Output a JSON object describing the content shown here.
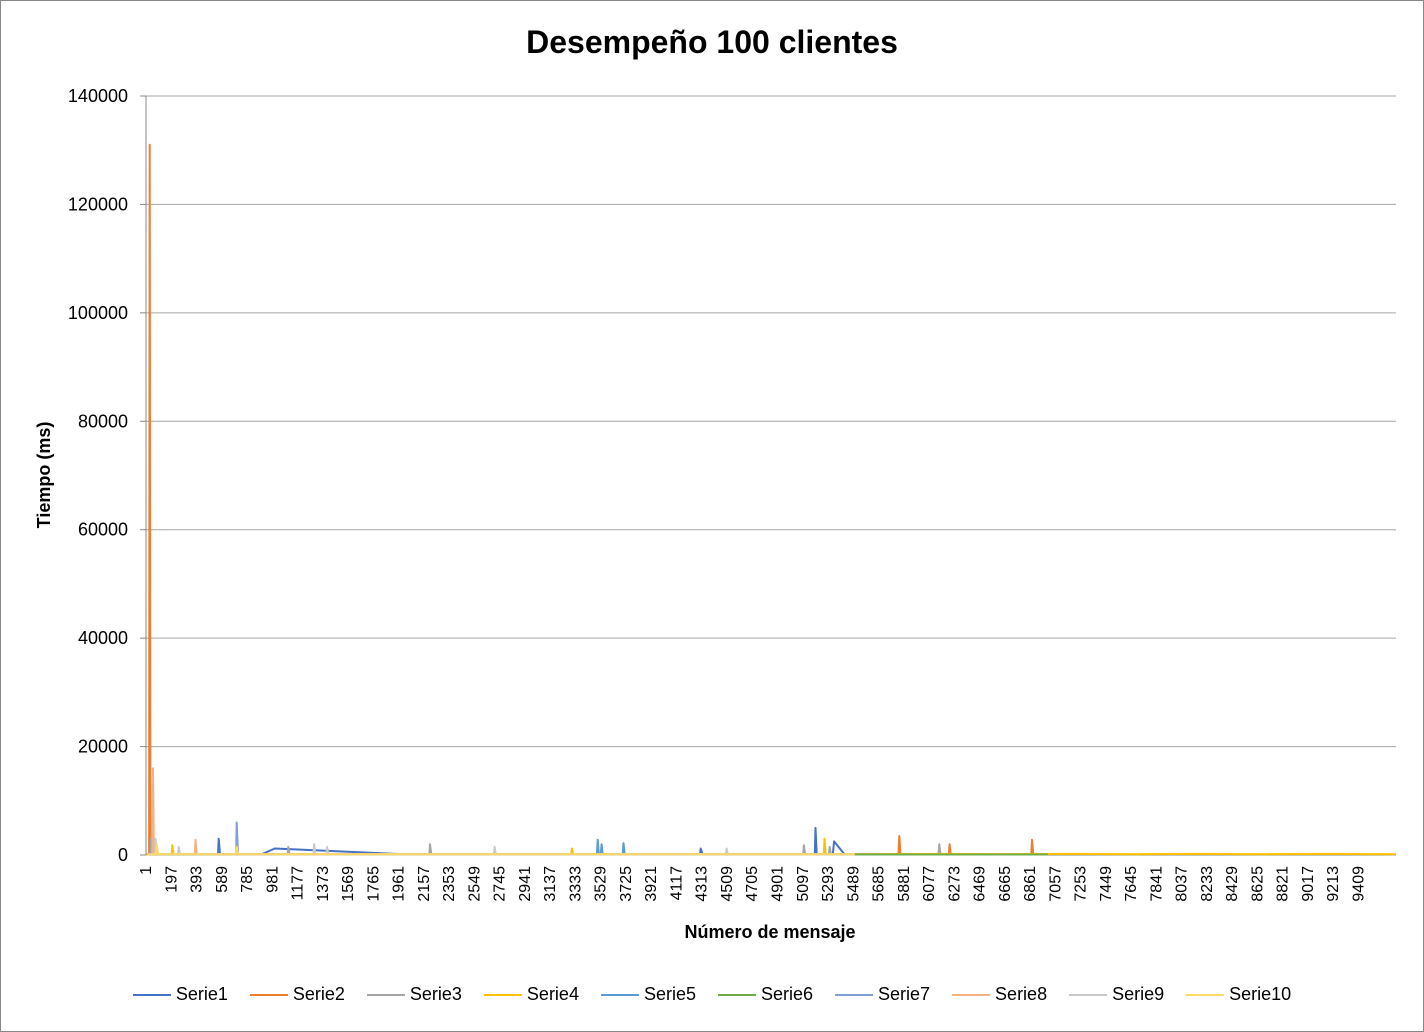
{
  "chart_data": {
    "type": "line",
    "title": "Desempeño 100 clientes",
    "xlabel": "Número de mensaje",
    "ylabel": "Tiempo (ms)",
    "ylim": [
      0,
      140000
    ],
    "xlim": [
      1,
      9700
    ],
    "y_ticks": [
      "0",
      "20000",
      "40000",
      "60000",
      "80000",
      "100000",
      "120000",
      "140000"
    ],
    "x_ticks": [
      "1",
      "197",
      "393",
      "589",
      "785",
      "981",
      "1177",
      "1373",
      "1569",
      "1765",
      "1961",
      "2157",
      "2353",
      "2549",
      "2745",
      "2941",
      "3137",
      "3333",
      "3529",
      "3725",
      "3921",
      "4117",
      "4313",
      "4509",
      "4705",
      "4901",
      "5097",
      "5293",
      "5489",
      "5685",
      "5881",
      "6077",
      "6273",
      "6469",
      "6665",
      "6861",
      "7057",
      "7253",
      "7449",
      "7645",
      "7841",
      "8037",
      "8233",
      "8429",
      "8625",
      "8821",
      "9017",
      "9213",
      "9409"
    ],
    "grid": true,
    "legend_position": "bottom",
    "series": [
      {
        "name": "Serie1",
        "color": "#4472C4",
        "x": [
          1,
          60,
          120,
          300,
          560,
          565,
          575,
          900,
          1000,
          2000,
          3000,
          4000,
          4300,
          4305,
          4320,
          5000,
          5190,
          5196,
          5205,
          5330,
          5340,
          5420
        ],
        "y": [
          100,
          200,
          150,
          120,
          150,
          3000,
          100,
          150,
          1200,
          150,
          150,
          150,
          130,
          1200,
          120,
          150,
          150,
          5000,
          150,
          120,
          2500,
          150
        ]
      },
      {
        "name": "Serie2",
        "color": "#ED7D31",
        "x": [
          1,
          25,
          30,
          35,
          60,
          300,
          1000,
          2000,
          3000,
          4000,
          5000,
          5800,
          5840,
          5846,
          5855,
          6200,
          6230,
          6236,
          6245,
          6700,
          6870,
          6876,
          6885,
          6950
        ],
        "y": [
          100,
          200,
          131000,
          500,
          150,
          120,
          150,
          150,
          150,
          150,
          150,
          150,
          150,
          3500,
          150,
          150,
          150,
          2000,
          150,
          150,
          150,
          2800,
          150,
          150
        ]
      },
      {
        "name": "Serie3",
        "color": "#A5A5A5",
        "x": [
          1,
          35,
          40,
          45,
          300,
          1000,
          1100,
          1105,
          1115,
          2000,
          2200,
          2205,
          2215,
          3000,
          5000,
          5100,
          5106,
          5115,
          5300,
          5306,
          5315,
          6100,
          6150,
          6156,
          6165,
          6500
        ],
        "y": [
          100,
          200,
          3000,
          150,
          150,
          150,
          150,
          1500,
          150,
          150,
          150,
          2000,
          150,
          150,
          150,
          150,
          1800,
          150,
          150,
          1500,
          150,
          150,
          150,
          2000,
          150,
          150
        ]
      },
      {
        "name": "Serie4",
        "color": "#FFC000",
        "x": [
          1,
          200,
          205,
          215,
          1000,
          2000,
          3000,
          3300,
          3306,
          3315,
          5000,
          5260,
          5266,
          5275,
          5400,
          5700,
          6200,
          6700,
          7200,
          7700,
          8200,
          8700,
          9200,
          9700
        ],
        "y": [
          100,
          100,
          1800,
          100,
          120,
          120,
          120,
          120,
          1200,
          120,
          120,
          120,
          3000,
          120,
          120,
          150,
          200,
          150,
          200,
          150,
          200,
          150,
          200,
          150
        ]
      },
      {
        "name": "Serie5",
        "color": "#5B9BD5",
        "x": [
          1,
          1000,
          2000,
          3000,
          3500,
          3506,
          3515,
          3530,
          3536,
          3545,
          3700,
          3706,
          3715,
          5000,
          5500
        ],
        "y": [
          100,
          120,
          120,
          120,
          120,
          2800,
          120,
          120,
          2000,
          120,
          120,
          2200,
          120,
          120,
          120
        ]
      },
      {
        "name": "Serie6",
        "color": "#70AD47",
        "x": [
          1,
          1000,
          2000,
          3000,
          4000,
          5000,
          6000,
          7000
        ],
        "y": [
          80,
          100,
          100,
          100,
          100,
          100,
          100,
          100
        ]
      },
      {
        "name": "Serie7",
        "color": "#7F9FD5",
        "x": [
          1,
          100,
          700,
          705,
          715,
          1000,
          2000,
          3000,
          4000,
          5000,
          5500
        ],
        "y": [
          100,
          150,
          150,
          6000,
          150,
          150,
          150,
          150,
          150,
          150,
          150
        ]
      },
      {
        "name": "Serie8",
        "color": "#F4B183",
        "x": [
          1,
          50,
          55,
          62,
          80,
          380,
          385,
          395,
          1000,
          2000,
          3000,
          4000,
          5000,
          5500
        ],
        "y": [
          100,
          200,
          16000,
          200,
          150,
          150,
          2800,
          150,
          150,
          150,
          150,
          150,
          150,
          150
        ]
      },
      {
        "name": "Serie9",
        "color": "#C9C9C9",
        "x": [
          1,
          70,
          75,
          85,
          120,
          250,
          255,
          265,
          1000,
          1300,
          1305,
          1315,
          1400,
          1406,
          1415,
          2700,
          2706,
          2715,
          4500,
          4506,
          4515,
          5500
        ],
        "y": [
          100,
          150,
          3000,
          150,
          150,
          150,
          1500,
          150,
          150,
          150,
          2000,
          150,
          150,
          1500,
          150,
          150,
          1500,
          150,
          150,
          1200,
          150,
          150
        ]
      },
      {
        "name": "Serie10",
        "color": "#FFD966",
        "x": [
          1,
          80,
          85,
          95,
          700,
          705,
          715,
          1000,
          2000,
          3000,
          5000,
          5500
        ],
        "y": [
          100,
          150,
          2000,
          150,
          150,
          1500,
          150,
          150,
          150,
          150,
          150,
          150
        ]
      }
    ]
  }
}
